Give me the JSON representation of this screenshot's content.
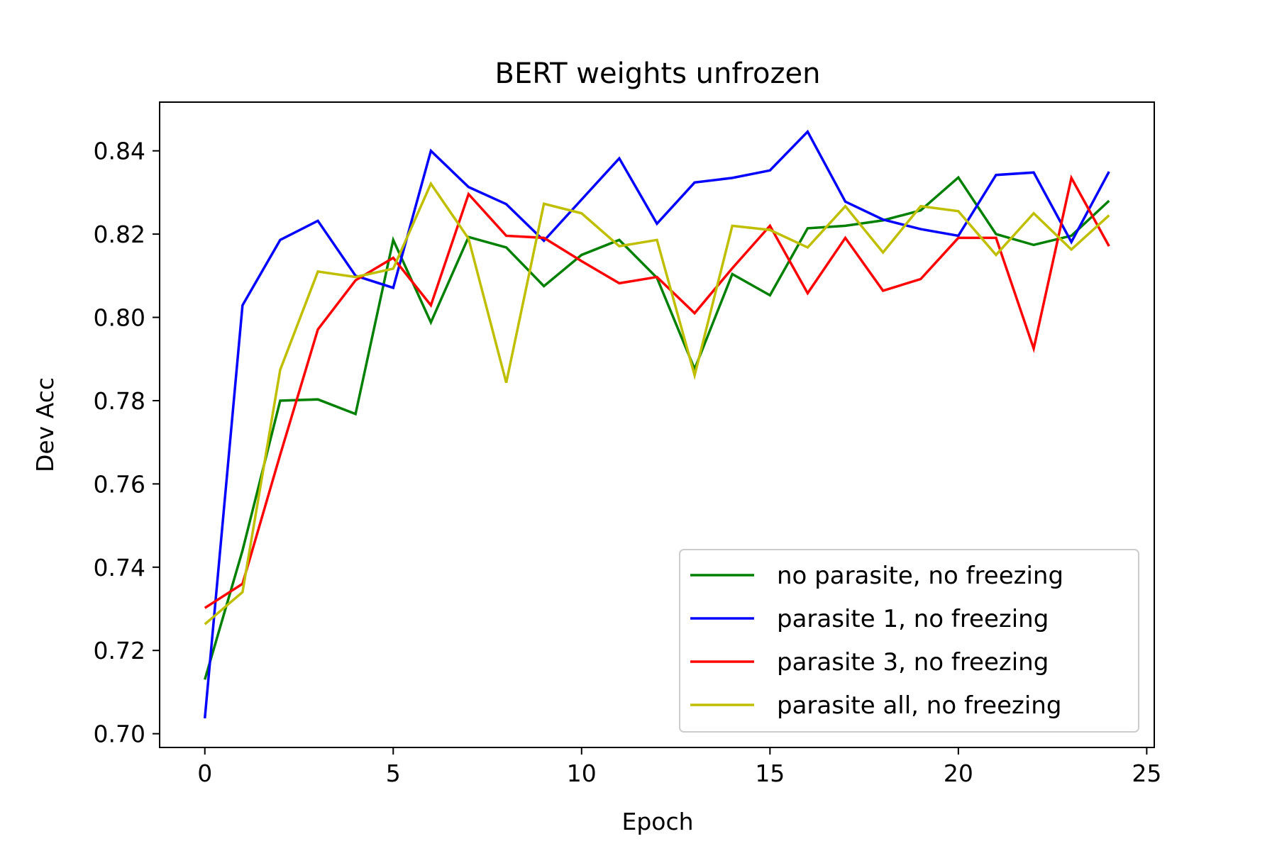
{
  "chart_data": {
    "type": "line",
    "title": "BERT weights unfrozen",
    "xlabel": "Epoch",
    "ylabel": "Dev Acc",
    "xlim": [
      -1.2,
      25.2
    ],
    "ylim": [
      0.6967,
      0.8517
    ],
    "xticks": [
      0,
      5,
      10,
      15,
      20,
      25
    ],
    "yticks": [
      0.7,
      0.72,
      0.74,
      0.76,
      0.78,
      0.8,
      0.82,
      0.84
    ],
    "ytick_labels": [
      "0.70",
      "0.72",
      "0.74",
      "0.76",
      "0.78",
      "0.80",
      "0.82",
      "0.84"
    ],
    "grid": false,
    "legend_position": "lower-right",
    "x": [
      0,
      1,
      2,
      3,
      4,
      5,
      6,
      7,
      8,
      9,
      10,
      11,
      12,
      13,
      14,
      15,
      16,
      17,
      18,
      19,
      20,
      21,
      22,
      23,
      24
    ],
    "series": [
      {
        "name": "no parasite, no freezing",
        "color": "#008000",
        "values": [
          0.713,
          0.744,
          0.78,
          0.7803,
          0.7768,
          0.8186,
          0.7988,
          0.8193,
          0.8168,
          0.8075,
          0.815,
          0.8186,
          0.8095,
          0.7876,
          0.8104,
          0.8053,
          0.8214,
          0.822,
          0.8233,
          0.8257,
          0.8336,
          0.82,
          0.8174,
          0.8196,
          0.828
        ]
      },
      {
        "name": "parasite 1, no freezing",
        "color": "#0000ff",
        "values": [
          0.7037,
          0.8029,
          0.8186,
          0.8232,
          0.81,
          0.8071,
          0.84,
          0.8313,
          0.8272,
          0.8184,
          0.8283,
          0.8382,
          0.8225,
          0.8324,
          0.8335,
          0.8353,
          0.8446,
          0.8278,
          0.8235,
          0.8212,
          0.8196,
          0.8342,
          0.8348,
          0.8181,
          0.835
        ]
      },
      {
        "name": "parasite 3, no freezing",
        "color": "#ff0000",
        "values": [
          0.7302,
          0.736,
          0.767,
          0.7971,
          0.8089,
          0.8143,
          0.8029,
          0.8296,
          0.8196,
          0.8191,
          0.8135,
          0.8082,
          0.8097,
          0.801,
          0.8118,
          0.822,
          0.8058,
          0.8191,
          0.8064,
          0.8092,
          0.8191,
          0.8191,
          0.7925,
          0.8335,
          0.8171
        ]
      },
      {
        "name": "parasite all, no freezing",
        "color": "#bfbf00",
        "values": [
          0.7263,
          0.734,
          0.7874,
          0.811,
          0.8097,
          0.8117,
          0.8321,
          0.8189,
          0.7843,
          0.8273,
          0.825,
          0.8171,
          0.8186,
          0.7861,
          0.822,
          0.821,
          0.8168,
          0.8267,
          0.8156,
          0.8267,
          0.8255,
          0.815,
          0.825,
          0.8163,
          0.8245
        ]
      }
    ]
  }
}
